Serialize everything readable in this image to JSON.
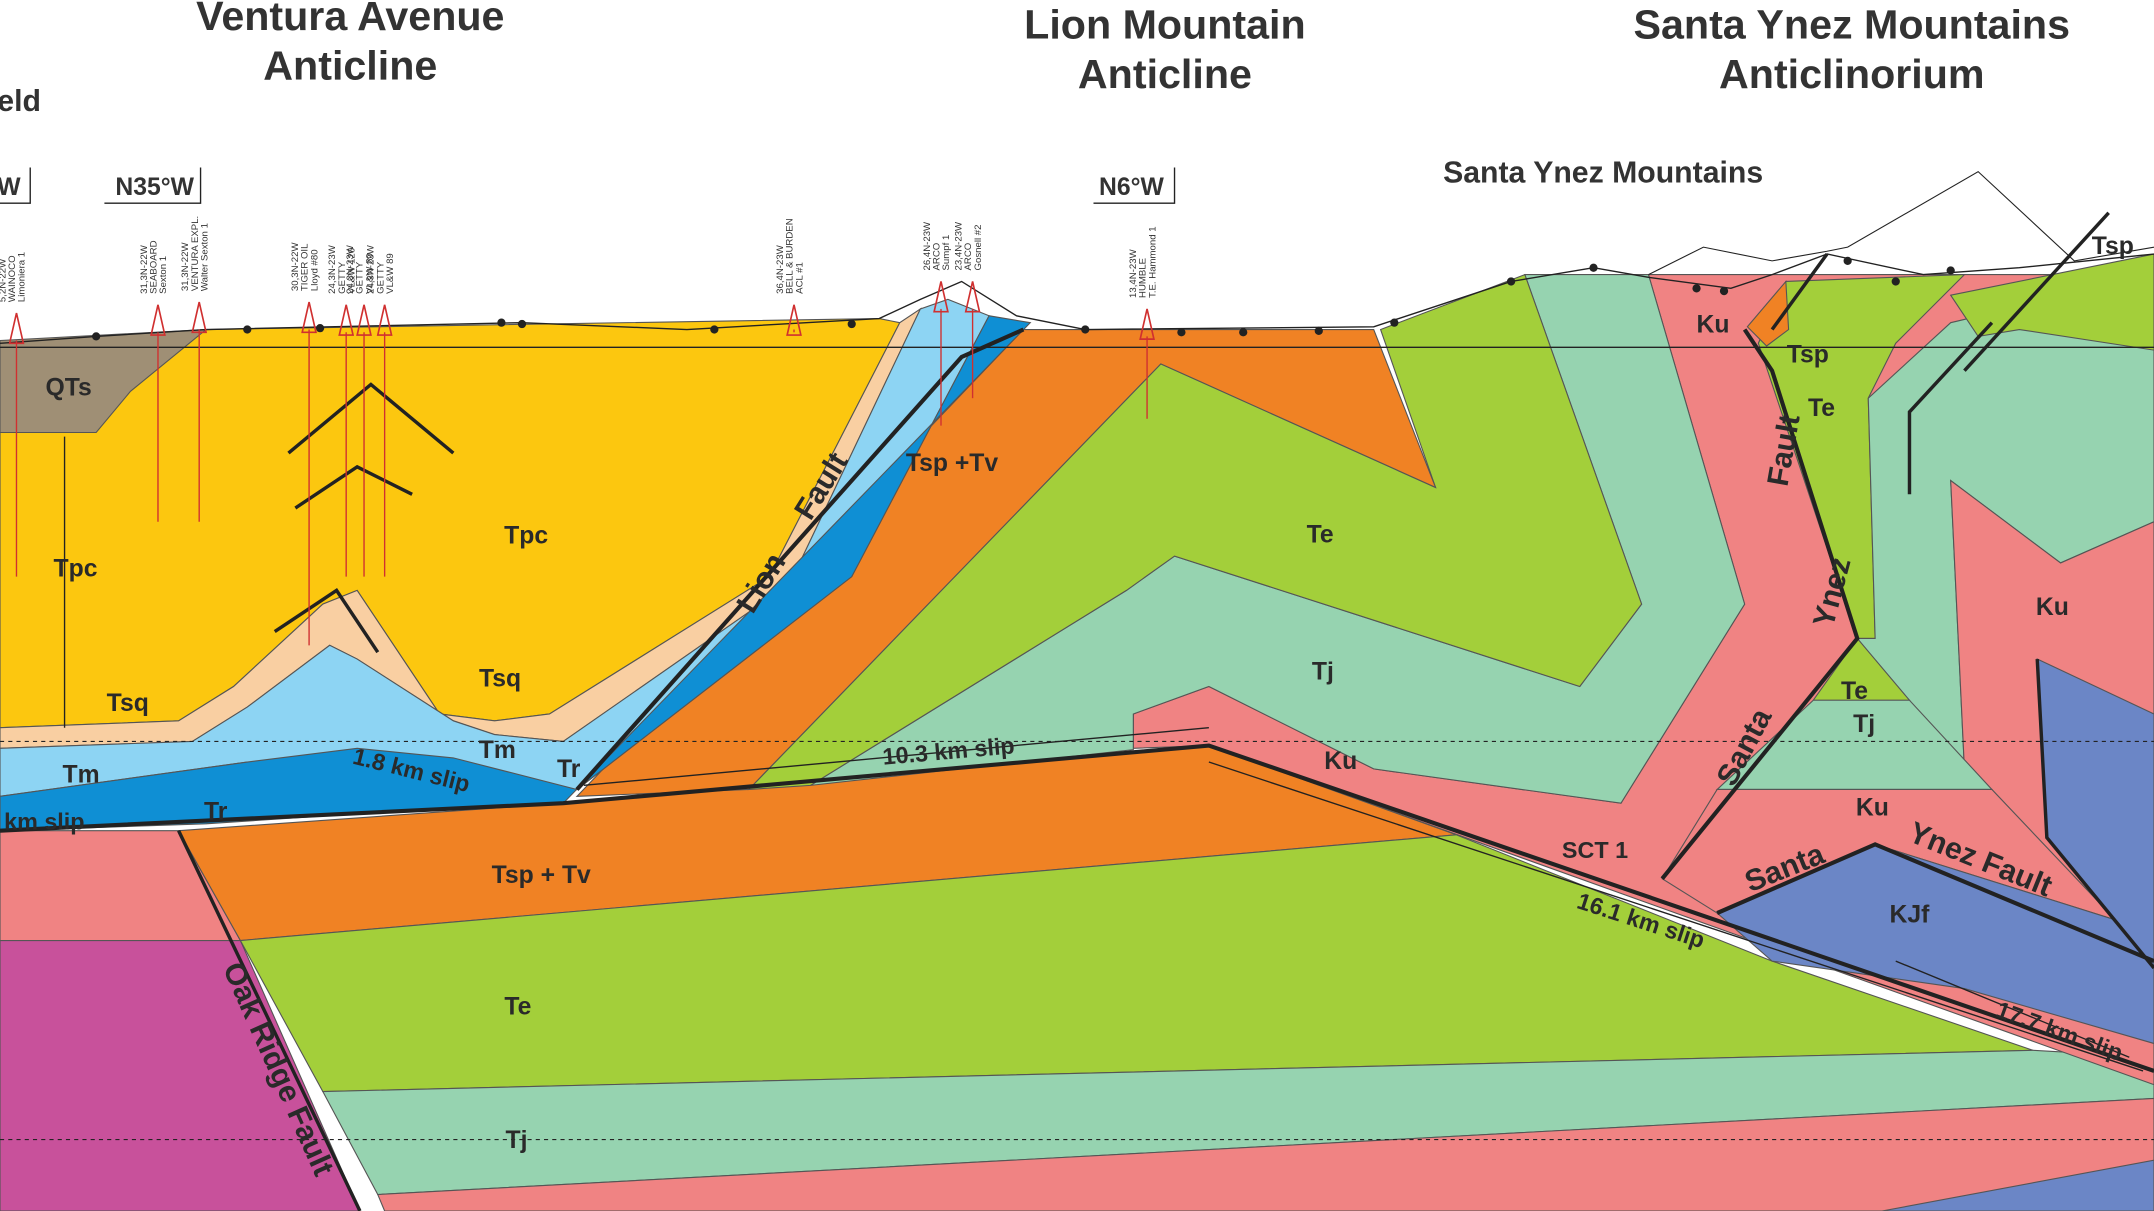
{
  "titles": [
    [
      "Ventura Avenue",
      "Anticline"
    ],
    [
      "Lion Mountain",
      "Anticline"
    ],
    [
      "Santa Ynez Mountains",
      "Anticlinorium"
    ]
  ],
  "field_label": "eld",
  "range_label": "Santa Ynez Mountains",
  "directions": [
    "W",
    "N35°W",
    "N6°W"
  ],
  "units": [
    "QTs",
    "Tpc",
    "Tpc",
    "Tsq",
    "Tsq",
    "Tm",
    "Tm",
    "Tr",
    "Tr",
    "Tsp +Tv",
    "Te",
    "Tj",
    "Ku",
    "Tsp + Tv",
    "Te",
    "Tj",
    "Ku",
    "Tsp",
    "Te",
    "Tsp",
    "Te",
    "Tj",
    "Ku",
    "KJf",
    "Ku"
  ],
  "faults": [
    "Lion",
    "Fault",
    "Oak Ridge Fault",
    "Santa",
    "Ynez",
    "Fault",
    "Santa",
    "Ynez Fault"
  ],
  "slips": [
    "10.3 km slip",
    "1.8 km slip",
    "km slip",
    "16.1 km slip",
    "17.7 km slip",
    "SCT 1"
  ],
  "wells": [
    [
      "5,2N-22W",
      "WAINOCO",
      "Limoniera 1"
    ],
    [
      "31,3N-22W",
      "SEABOARD",
      "Sexton 1"
    ],
    [
      "31,3N-22W",
      "VENTURA EXPL.",
      "Walter Sexton 1"
    ],
    [
      "30,3N-22W",
      "TIGER OIL",
      "Lloyd #80"
    ],
    [
      "24,3N-23W",
      "GETTY",
      "VL&W 126"
    ],
    [
      "24,3N-23W",
      "GETTY",
      "VL&W 80"
    ],
    [
      "24,3N-23W",
      "GETTY",
      "VL&W 89"
    ],
    [
      "36,4N-23W",
      "BELL & BURDEN",
      "ACL #1"
    ],
    [
      "26,4N-23W",
      "ARCO",
      "Sumpf 1"
    ],
    [
      "23,4N-23W",
      "ARCO",
      "Gosnell #2"
    ],
    [
      "13,4N-23W",
      "HUMBLE",
      "T.E. Hammond 1"
    ]
  ]
}
